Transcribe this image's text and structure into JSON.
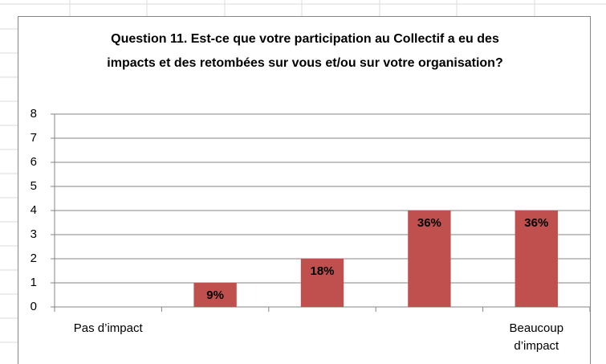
{
  "chart_data": {
    "type": "bar",
    "title": "Question 11. Est-ce que votre participation au Collectif a eu des impacts et des retombées sur vous et/ou sur votre organisation?",
    "categories": [
      "Pas d’impact",
      null,
      null,
      null,
      "Beaucoup d’impact"
    ],
    "values": [
      0,
      1,
      2,
      4,
      4
    ],
    "value_labels": [
      null,
      "9%",
      "18%",
      "36%",
      "36%"
    ],
    "color": "#c0504d",
    "ylim": [
      0,
      8
    ],
    "yticks": [
      0,
      1,
      2,
      3,
      4,
      5,
      6,
      7,
      8
    ],
    "grid": true
  }
}
